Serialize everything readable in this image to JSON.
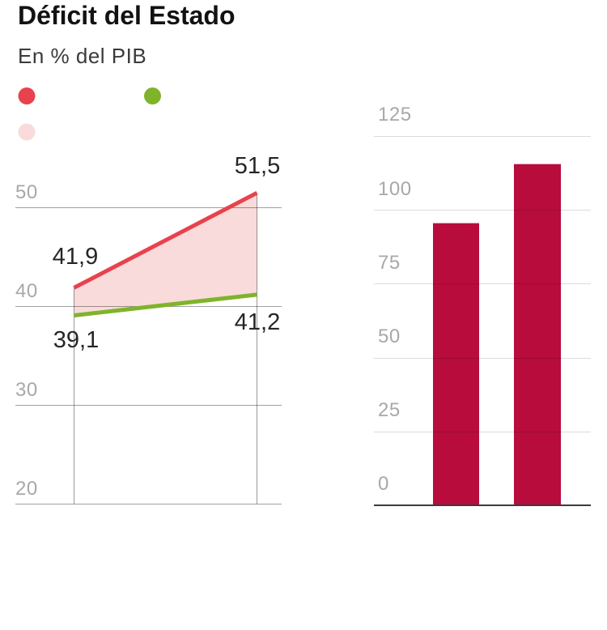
{
  "header": {
    "title": "Déficit del Estado",
    "subtitle": "En % del PIB"
  },
  "chart_data": [
    {
      "type": "area",
      "title": "Déficit del Estado",
      "subtitle": "En % del PIB",
      "x_axis_labels": [],
      "series": [
        {
          "name": "red_series",
          "color": "#e8424e",
          "values": [
            41.9,
            51.5
          ],
          "display_labels": [
            "41,9",
            "51,5"
          ]
        },
        {
          "name": "green_series",
          "color": "#7fb42a",
          "values": [
            39.1,
            41.2
          ],
          "display_labels": [
            "39,1",
            "41,2"
          ]
        }
      ],
      "area_between": {
        "upper": "red_series",
        "lower": "green_series",
        "fill": "#f8dbda"
      },
      "legend_dots": [
        {
          "id": "red",
          "color": "#e8424e",
          "label": ""
        },
        {
          "id": "green",
          "color": "#7fb42a",
          "label": ""
        },
        {
          "id": "pink",
          "color": "#f8dbda",
          "label": ""
        }
      ],
      "yticks": [
        50,
        40,
        30,
        20
      ],
      "ylim": [
        20,
        53
      ],
      "grid": true,
      "legend_position": "top-left"
    },
    {
      "type": "bar",
      "categories": [
        "bar_1",
        "bar_2"
      ],
      "values": [
        95.5,
        115.5
      ],
      "bar_color": "#b80c3d",
      "yticks": [
        125,
        100,
        75,
        50,
        25,
        0
      ],
      "ylim": [
        0,
        130
      ],
      "grid": true,
      "x_axis_labels": []
    }
  ]
}
